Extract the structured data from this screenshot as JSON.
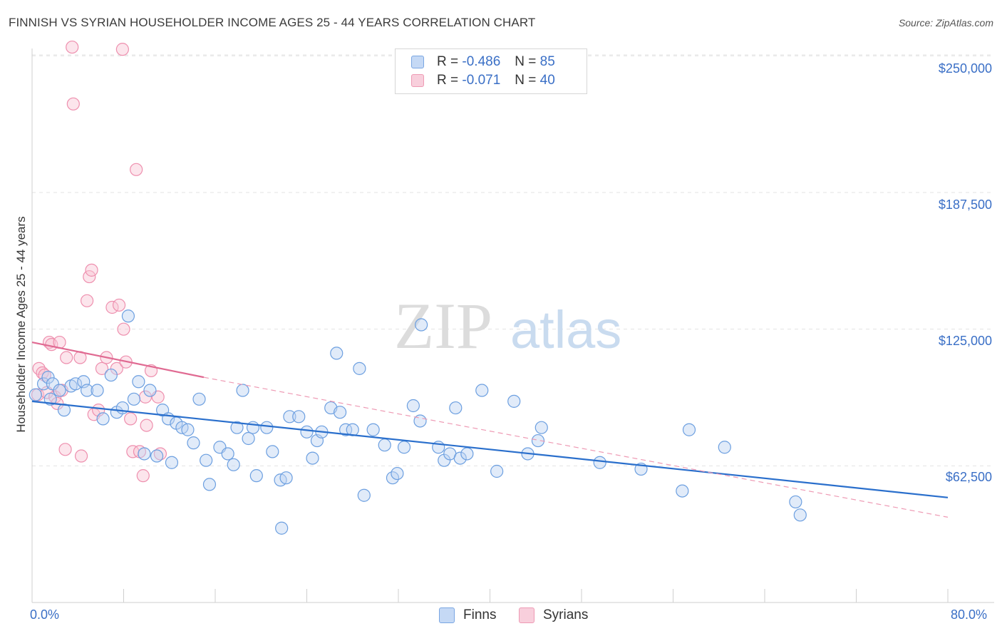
{
  "chart_data": {
    "type": "scatter",
    "title": "FINNISH VS SYRIAN HOUSEHOLDER INCOME AGES 25 - 44 YEARS CORRELATION CHART",
    "source": "Source: ZipAtlas.com",
    "xlabel": "",
    "ylabel": "Householder Income Ages 25 - 44 years",
    "xlim": [
      0,
      80
    ],
    "ylim": [
      0,
      262500
    ],
    "x_tick_labels": [
      "0.0%",
      "80.0%"
    ],
    "y_ticks": [
      62500,
      125000,
      187500,
      250000
    ],
    "y_tick_labels": [
      "$62,500",
      "$125,000",
      "$187,500",
      "$250,000"
    ],
    "grid": "horizontal dashed",
    "watermark": "ZIPatlas",
    "legend": {
      "position": "top-center",
      "entries": [
        {
          "r_label": "R =",
          "r_value": "-0.486",
          "n_label": "N =",
          "n_value": "85",
          "color": "#aac8f0"
        },
        {
          "r_label": "R =",
          "r_value": "-0.071",
          "n_label": "N =",
          "n_value": "40",
          "color": "#f5b8cc"
        }
      ]
    },
    "bottom_legend": [
      "Finns",
      "Syrians"
    ],
    "series": [
      {
        "name": "Finns",
        "color": "#6fa0e0",
        "trend": {
          "x": [
            0,
            80
          ],
          "y": [
            92000,
            48000
          ],
          "color": "#2a6fcc",
          "style": "solid"
        },
        "points": [
          [
            0.3,
            95000
          ],
          [
            1.0,
            100000
          ],
          [
            1.4,
            103000
          ],
          [
            1.6,
            93000
          ],
          [
            1.8,
            100000
          ],
          [
            2.4,
            97000
          ],
          [
            2.8,
            88000
          ],
          [
            3.4,
            99000
          ],
          [
            3.8,
            100000
          ],
          [
            4.5,
            101000
          ],
          [
            4.8,
            97000
          ],
          [
            5.7,
            97000
          ],
          [
            6.2,
            84000
          ],
          [
            6.9,
            104000
          ],
          [
            7.4,
            87000
          ],
          [
            7.9,
            89000
          ],
          [
            8.4,
            131000
          ],
          [
            8.9,
            93000
          ],
          [
            9.3,
            101000
          ],
          [
            9.8,
            68000
          ],
          [
            10.3,
            97000
          ],
          [
            10.9,
            67000
          ],
          [
            11.4,
            88000
          ],
          [
            11.9,
            84000
          ],
          [
            12.2,
            64000
          ],
          [
            12.6,
            82000
          ],
          [
            13.1,
            80000
          ],
          [
            13.6,
            79000
          ],
          [
            14.1,
            73000
          ],
          [
            14.6,
            93000
          ],
          [
            15.2,
            65000
          ],
          [
            15.5,
            54000
          ],
          [
            16.4,
            71000
          ],
          [
            17.1,
            68000
          ],
          [
            17.6,
            63000
          ],
          [
            17.9,
            80000
          ],
          [
            18.4,
            97000
          ],
          [
            18.9,
            75000
          ],
          [
            19.3,
            80000
          ],
          [
            19.6,
            58000
          ],
          [
            20.5,
            80000
          ],
          [
            21.0,
            69000
          ],
          [
            21.7,
            56000
          ],
          [
            22.2,
            57000
          ],
          [
            21.8,
            34000
          ],
          [
            22.5,
            85000
          ],
          [
            23.3,
            85000
          ],
          [
            24.0,
            78000
          ],
          [
            24.5,
            66000
          ],
          [
            24.9,
            74000
          ],
          [
            25.3,
            78000
          ],
          [
            26.1,
            89000
          ],
          [
            26.6,
            114000
          ],
          [
            26.9,
            87000
          ],
          [
            27.4,
            79000
          ],
          [
            28.0,
            79000
          ],
          [
            28.6,
            107000
          ],
          [
            29.0,
            49000
          ],
          [
            29.8,
            79000
          ],
          [
            30.8,
            72000
          ],
          [
            31.5,
            57000
          ],
          [
            31.9,
            59000
          ],
          [
            32.5,
            71000
          ],
          [
            33.3,
            90000
          ],
          [
            33.9,
            83000
          ],
          [
            34.0,
            127000
          ],
          [
            35.5,
            71000
          ],
          [
            36.0,
            65000
          ],
          [
            36.5,
            68000
          ],
          [
            37.0,
            89000
          ],
          [
            37.4,
            66000
          ],
          [
            38.0,
            68000
          ],
          [
            39.3,
            97000
          ],
          [
            40.6,
            60000
          ],
          [
            42.1,
            92000
          ],
          [
            43.3,
            68000
          ],
          [
            44.2,
            74000
          ],
          [
            44.5,
            80000
          ],
          [
            49.6,
            64000
          ],
          [
            53.2,
            61000
          ],
          [
            56.8,
            51000
          ],
          [
            57.4,
            79000
          ],
          [
            60.5,
            71000
          ],
          [
            66.7,
            46000
          ],
          [
            67.1,
            40000
          ]
        ]
      },
      {
        "name": "Syrians",
        "color": "#f08aaa",
        "trend": {
          "x": [
            0,
            15
          ],
          "y": [
            119000,
            103000
          ],
          "dashed_to": [
            80,
            39000
          ],
          "color": "#e06a92"
        },
        "points": [
          [
            0.5,
            95000
          ],
          [
            0.6,
            107000
          ],
          [
            0.9,
            105000
          ],
          [
            1.1,
            104000
          ],
          [
            1.3,
            96000
          ],
          [
            1.5,
            119000
          ],
          [
            1.7,
            118000
          ],
          [
            2.0,
            94000
          ],
          [
            2.2,
            91000
          ],
          [
            2.4,
            119000
          ],
          [
            2.6,
            97000
          ],
          [
            2.9,
            70000
          ],
          [
            3.0,
            112000
          ],
          [
            3.5,
            254000
          ],
          [
            3.6,
            228000
          ],
          [
            4.2,
            112000
          ],
          [
            4.3,
            67000
          ],
          [
            4.8,
            138000
          ],
          [
            5.0,
            149000
          ],
          [
            5.2,
            152000
          ],
          [
            5.4,
            86000
          ],
          [
            5.8,
            88000
          ],
          [
            6.1,
            107000
          ],
          [
            6.5,
            112000
          ],
          [
            7.0,
            135000
          ],
          [
            7.4,
            107000
          ],
          [
            7.6,
            136000
          ],
          [
            7.9,
            253000
          ],
          [
            8.0,
            125000
          ],
          [
            8.2,
            110000
          ],
          [
            8.6,
            84000
          ],
          [
            8.8,
            69000
          ],
          [
            9.1,
            198000
          ],
          [
            9.4,
            69000
          ],
          [
            9.7,
            58000
          ],
          [
            9.9,
            94000
          ],
          [
            10.0,
            81000
          ],
          [
            10.4,
            106000
          ],
          [
            11.0,
            94000
          ],
          [
            11.2,
            68000
          ]
        ]
      }
    ]
  }
}
